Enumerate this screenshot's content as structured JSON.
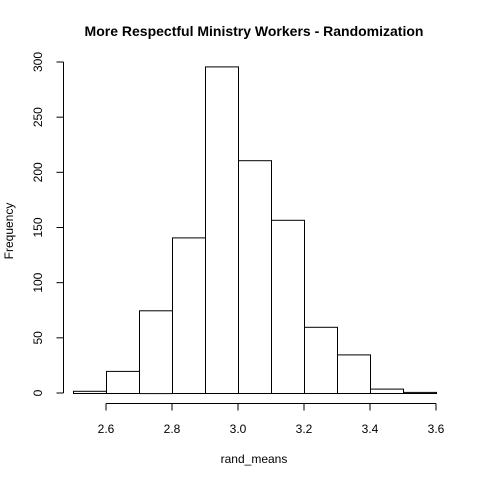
{
  "chart_data": {
    "type": "bar",
    "title": "More Respectful Ministry Workers - Randomization",
    "xlabel": "rand_means",
    "ylabel": "Frequency",
    "bins": [
      {
        "start": 2.5,
        "end": 2.6,
        "count": 2
      },
      {
        "start": 2.6,
        "end": 2.7,
        "count": 20
      },
      {
        "start": 2.7,
        "end": 2.8,
        "count": 75
      },
      {
        "start": 2.8,
        "end": 2.9,
        "count": 141
      },
      {
        "start": 2.9,
        "end": 3.0,
        "count": 296
      },
      {
        "start": 3.0,
        "end": 3.1,
        "count": 211
      },
      {
        "start": 3.1,
        "end": 3.2,
        "count": 157
      },
      {
        "start": 3.2,
        "end": 3.3,
        "count": 60
      },
      {
        "start": 3.3,
        "end": 3.4,
        "count": 35
      },
      {
        "start": 3.4,
        "end": 3.5,
        "count": 4
      },
      {
        "start": 3.5,
        "end": 3.6,
        "count": 1
      }
    ],
    "xlim": [
      2.5,
      3.6
    ],
    "ylim": [
      0,
      300
    ],
    "x_ticks": [
      2.6,
      2.8,
      3.0,
      3.2,
      3.4,
      3.6
    ],
    "x_tick_labels": [
      "2.6",
      "2.8",
      "3.0",
      "3.2",
      "3.4",
      "3.6"
    ],
    "y_ticks": [
      0,
      50,
      100,
      150,
      200,
      250,
      300
    ],
    "y_tick_labels": [
      "0",
      "50",
      "100",
      "150",
      "200",
      "250",
      "300"
    ],
    "grid": false,
    "bar_fill": "#ffffff",
    "bar_stroke": "#000000"
  }
}
